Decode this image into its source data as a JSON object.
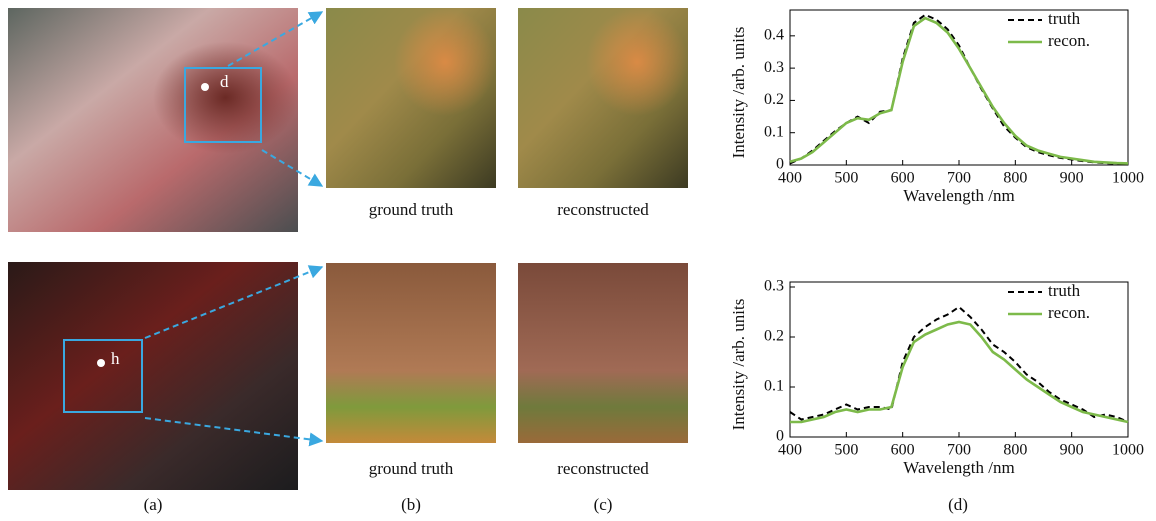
{
  "chart_data": [
    {
      "type": "line",
      "xlabel": "Wavelength /nm",
      "ylabel": "Intensity /arb. units",
      "x": [
        400,
        420,
        440,
        460,
        480,
        500,
        520,
        540,
        560,
        580,
        600,
        620,
        640,
        660,
        680,
        700,
        720,
        740,
        760,
        780,
        800,
        820,
        840,
        860,
        880,
        900,
        920,
        940,
        960,
        980,
        1000
      ],
      "series": [
        {
          "name": "truth",
          "color": "#000000",
          "style": "dashed",
          "values": [
            0.005,
            0.02,
            0.045,
            0.075,
            0.105,
            0.13,
            0.15,
            0.13,
            0.165,
            0.17,
            0.33,
            0.44,
            0.465,
            0.45,
            0.42,
            0.37,
            0.3,
            0.235,
            0.175,
            0.12,
            0.085,
            0.055,
            0.04,
            0.03,
            0.022,
            0.017,
            0.012,
            0.008,
            0.006,
            0.004,
            0.003
          ]
        },
        {
          "name": "recon.",
          "color": "#7dba4a",
          "style": "solid",
          "values": [
            0.01,
            0.02,
            0.04,
            0.07,
            0.1,
            0.13,
            0.145,
            0.14,
            0.16,
            0.17,
            0.32,
            0.43,
            0.455,
            0.44,
            0.41,
            0.36,
            0.3,
            0.24,
            0.18,
            0.13,
            0.09,
            0.06,
            0.045,
            0.035,
            0.025,
            0.02,
            0.015,
            0.01,
            0.008,
            0.006,
            0.005
          ]
        }
      ],
      "xlim": [
        400,
        1000
      ],
      "xticks": [
        400,
        500,
        600,
        700,
        800,
        900,
        1000
      ],
      "ylim": [
        0,
        0.48
      ],
      "yticks": [
        0,
        0.1,
        0.2,
        0.3,
        0.4
      ],
      "legend": "upper right"
    },
    {
      "type": "line",
      "xlabel": "Wavelength /nm",
      "ylabel": "Intensity /arb. units",
      "x": [
        400,
        420,
        440,
        460,
        480,
        500,
        520,
        540,
        560,
        580,
        600,
        620,
        640,
        660,
        680,
        700,
        720,
        740,
        760,
        780,
        800,
        820,
        840,
        860,
        880,
        900,
        920,
        940,
        960,
        980,
        1000
      ],
      "series": [
        {
          "name": "truth",
          "color": "#000000",
          "style": "dashed",
          "values": [
            0.05,
            0.035,
            0.04,
            0.045,
            0.055,
            0.065,
            0.055,
            0.06,
            0.06,
            0.055,
            0.15,
            0.2,
            0.22,
            0.235,
            0.245,
            0.26,
            0.24,
            0.215,
            0.185,
            0.17,
            0.15,
            0.125,
            0.11,
            0.09,
            0.075,
            0.065,
            0.055,
            0.04,
            0.045,
            0.04,
            0.03
          ]
        },
        {
          "name": "recon.",
          "color": "#7dba4a",
          "style": "solid",
          "values": [
            0.03,
            0.03,
            0.035,
            0.04,
            0.05,
            0.055,
            0.05,
            0.055,
            0.055,
            0.06,
            0.14,
            0.19,
            0.205,
            0.215,
            0.225,
            0.23,
            0.225,
            0.2,
            0.17,
            0.155,
            0.135,
            0.115,
            0.1,
            0.085,
            0.07,
            0.06,
            0.05,
            0.045,
            0.04,
            0.035,
            0.03
          ]
        }
      ],
      "xlim": [
        400,
        1000
      ],
      "xticks": [
        400,
        500,
        600,
        700,
        800,
        900,
        1000
      ],
      "ylim": [
        0,
        0.31
      ],
      "yticks": [
        0,
        0.1,
        0.2,
        0.3
      ],
      "legend": "upper right"
    }
  ],
  "figure": {
    "points": [
      "d",
      "h"
    ],
    "captions": [
      [
        "ground truth",
        "reconstructed"
      ],
      [
        "ground truth",
        "reconstructed"
      ]
    ],
    "panels": [
      "(a)",
      "(b)",
      "(c)",
      "(d)"
    ]
  }
}
